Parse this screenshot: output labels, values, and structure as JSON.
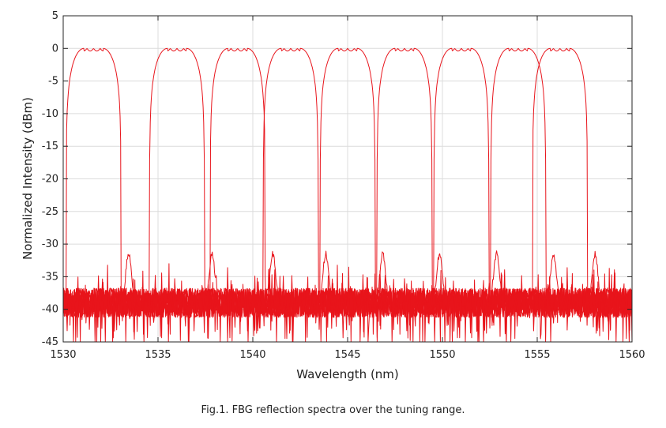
{
  "chart_data": {
    "type": "line",
    "title": "",
    "xlabel": "Wavelength (nm)",
    "ylabel": "Normalized Intensity (dBm)",
    "xlim": [
      1530,
      1560
    ],
    "ylim": [
      -45,
      5
    ],
    "xticks": [
      "1530",
      "1535",
      "1540",
      "1545",
      "1550",
      "1555",
      "1560"
    ],
    "yticks": [
      "5",
      "0",
      "-5",
      "-10",
      "-15",
      "-20",
      "-25",
      "-30",
      "-35",
      "-40",
      "-45"
    ],
    "grid": true,
    "line_color": "#e8141b",
    "noise_floor_dbm": -39,
    "series": [
      {
        "center": 1531.6,
        "peak": 0
      },
      {
        "center": 1536.0,
        "peak": 0
      },
      {
        "center": 1539.2,
        "peak": 0
      },
      {
        "center": 1542.0,
        "peak": 0
      },
      {
        "center": 1545.0,
        "peak": 0
      },
      {
        "center": 1548.0,
        "peak": 0
      },
      {
        "center": 1551.0,
        "peak": 0
      },
      {
        "center": 1554.0,
        "peak": 0
      },
      {
        "center": 1556.2,
        "peak": 0
      }
    ]
  },
  "caption": "Fig.1. FBG reflection spectra over the tuning range."
}
